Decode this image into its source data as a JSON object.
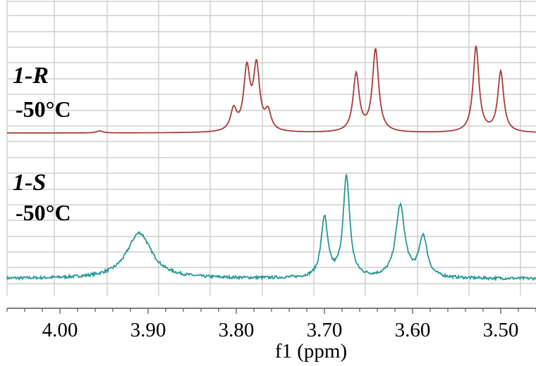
{
  "chart_data": {
    "type": "line",
    "xlabel": "f1 (ppm)",
    "xlim": [
      4.06,
      3.46
    ],
    "x_reversed": true,
    "grid": true,
    "ticks": [
      "4.00",
      "3.90",
      "3.80",
      "3.70",
      "3.60",
      "3.50"
    ],
    "tick_values": [
      4.0,
      3.9,
      3.8,
      3.7,
      3.6,
      3.5
    ],
    "colors": {
      "top": "#a83c3c",
      "bottom": "#2a9896",
      "grid": "#cfcfcf"
    },
    "series": [
      {
        "label_name": "1-R",
        "label_temp": "-50°C",
        "color": "#a83c3c",
        "noise": 0.0,
        "baseline": 0,
        "peaks": [
          {
            "center": 3.803,
            "height": 30,
            "width": 0.0042
          },
          {
            "center": 3.788,
            "height": 86,
            "width": 0.0042
          },
          {
            "center": 3.777,
            "height": 90,
            "width": 0.0042
          },
          {
            "center": 3.764,
            "height": 26,
            "width": 0.0042
          },
          {
            "center": 3.664,
            "height": 82,
            "width": 0.0042
          },
          {
            "center": 3.642,
            "height": 117,
            "width": 0.0042
          },
          {
            "center": 3.528,
            "height": 122,
            "width": 0.004
          },
          {
            "center": 3.5,
            "height": 86,
            "width": 0.004
          },
          {
            "center": 3.955,
            "height": 3,
            "width": 0.004
          }
        ]
      },
      {
        "label_name": "1-S",
        "label_temp": "-50°C",
        "color": "#2a9896",
        "noise": 2.0,
        "baseline": 0,
        "peaks": [
          {
            "center": 3.91,
            "height": 65,
            "width": 0.017
          },
          {
            "center": 3.7,
            "height": 85,
            "width": 0.0045
          },
          {
            "center": 3.675,
            "height": 143,
            "width": 0.0045
          },
          {
            "center": 3.614,
            "height": 102,
            "width": 0.0062
          },
          {
            "center": 3.588,
            "height": 58,
            "width": 0.0055
          }
        ]
      }
    ]
  }
}
